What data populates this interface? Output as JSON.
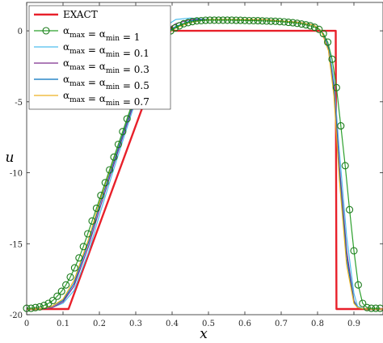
{
  "chart_data": {
    "type": "line",
    "title": "",
    "xlabel": "x",
    "ylabel": "u",
    "xlim": [
      0,
      0.98
    ],
    "ylim": [
      -20,
      2
    ],
    "xticks": [
      0,
      0.1,
      0.2,
      0.3,
      0.4,
      0.5,
      0.6,
      0.7,
      0.8,
      0.9
    ],
    "xtick_labels": [
      "0",
      "0.1",
      "0.2",
      "0.3",
      "0.4",
      "0.5",
      "0.6",
      "0.7",
      "0.8",
      "0.9"
    ],
    "yticks": [
      0,
      -5,
      -10,
      -15,
      -20
    ],
    "ytick_labels": [
      "0",
      "-5",
      "-10",
      "-15",
      "-20"
    ],
    "grid": false,
    "legend_position": "top-left",
    "series": [
      {
        "name": "EXACT",
        "legend": {
          "base": "EXACT"
        },
        "color": "#e8202a",
        "style": "line",
        "width": 2.4,
        "x": [
          0,
          0.11,
          0.115,
          0.4,
          0.403,
          0.85,
          0.852,
          0.98
        ],
        "y": [
          -19.6,
          -19.6,
          -19.6,
          0.3,
          0.0,
          0.0,
          -19.6,
          -19.6
        ]
      },
      {
        "name": "alpha_max = alpha_min = 0.1",
        "legend": {
          "base": "α",
          "sub1": "max",
          "mid": " = α",
          "sub2": "min",
          "val": " = 0.1"
        },
        "color": "#4dbeee",
        "style": "line",
        "width": 1.2,
        "x": [
          0,
          0.04,
          0.07,
          0.1,
          0.13,
          0.17,
          0.2,
          0.25,
          0.3,
          0.35,
          0.38,
          0.41,
          0.45,
          0.5,
          0.55,
          0.6,
          0.65,
          0.7,
          0.75,
          0.79,
          0.81,
          0.83,
          0.845,
          0.86,
          0.88,
          0.9,
          0.91,
          0.93,
          0.98
        ],
        "y": [
          -19.6,
          -19.6,
          -19.5,
          -19.2,
          -18.3,
          -15.6,
          -13.0,
          -8.9,
          -4.9,
          -1.2,
          0.3,
          0.8,
          0.9,
          0.8,
          0.8,
          0.8,
          0.8,
          0.7,
          0.6,
          0.4,
          0.0,
          -1.0,
          -3.5,
          -8.5,
          -14.5,
          -18.5,
          -19.4,
          -19.6,
          -19.6
        ]
      },
      {
        "name": "alpha_max = alpha_min = 0.3",
        "legend": {
          "base": "α",
          "sub1": "max",
          "mid": " = α",
          "sub2": "min",
          "val": " = 0.3"
        },
        "color": "#7e2f8e",
        "style": "line",
        "width": 1.2,
        "x": [
          0,
          0.04,
          0.07,
          0.1,
          0.13,
          0.17,
          0.2,
          0.25,
          0.3,
          0.35,
          0.38,
          0.41,
          0.45,
          0.5,
          0.55,
          0.6,
          0.65,
          0.7,
          0.75,
          0.79,
          0.81,
          0.83,
          0.845,
          0.86,
          0.88,
          0.9,
          0.91,
          0.93,
          0.98
        ],
        "y": [
          -19.6,
          -19.6,
          -19.5,
          -19.1,
          -18.0,
          -15.2,
          -12.6,
          -8.6,
          -4.7,
          -1.3,
          0.0,
          0.5,
          0.8,
          0.8,
          0.8,
          0.8,
          0.8,
          0.7,
          0.6,
          0.4,
          0.0,
          -1.2,
          -4.0,
          -9.5,
          -15.5,
          -19.0,
          -19.5,
          -19.6,
          -19.6
        ]
      },
      {
        "name": "alpha_max = alpha_min = 0.5",
        "legend": {
          "base": "α",
          "sub1": "max",
          "mid": " = α",
          "sub2": "min",
          "val": " = 0.5"
        },
        "color": "#0072bd",
        "style": "line",
        "width": 1.2,
        "x": [
          0,
          0.04,
          0.07,
          0.1,
          0.13,
          0.17,
          0.2,
          0.25,
          0.3,
          0.35,
          0.38,
          0.41,
          0.45,
          0.5,
          0.55,
          0.6,
          0.65,
          0.7,
          0.75,
          0.79,
          0.81,
          0.83,
          0.845,
          0.86,
          0.88,
          0.9,
          0.91,
          0.93,
          0.98
        ],
        "y": [
          -19.6,
          -19.6,
          -19.4,
          -19.0,
          -17.8,
          -14.9,
          -12.3,
          -8.4,
          -4.5,
          -1.4,
          -0.2,
          0.3,
          0.7,
          0.8,
          0.8,
          0.8,
          0.8,
          0.7,
          0.6,
          0.4,
          0.0,
          -1.3,
          -4.3,
          -10.0,
          -16.0,
          -19.1,
          -19.5,
          -19.6,
          -19.6
        ]
      },
      {
        "name": "alpha_max = alpha_min = 0.7",
        "legend": {
          "base": "α",
          "sub1": "max",
          "mid": " = α",
          "sub2": "min",
          "val": " = 0.7"
        },
        "color": "#edb120",
        "style": "line",
        "width": 1.2,
        "x": [
          0,
          0.04,
          0.07,
          0.1,
          0.13,
          0.17,
          0.2,
          0.25,
          0.3,
          0.35,
          0.38,
          0.41,
          0.45,
          0.5,
          0.55,
          0.6,
          0.65,
          0.7,
          0.75,
          0.79,
          0.81,
          0.83,
          0.845,
          0.86,
          0.88,
          0.9,
          0.91,
          0.93,
          0.98
        ],
        "y": [
          -19.6,
          -19.6,
          -19.4,
          -18.9,
          -17.6,
          -14.7,
          -12.1,
          -8.2,
          -4.4,
          -1.5,
          -0.3,
          0.2,
          0.6,
          0.8,
          0.8,
          0.8,
          0.8,
          0.7,
          0.6,
          0.4,
          0.0,
          -1.4,
          -4.6,
          -10.5,
          -16.5,
          -19.2,
          -19.5,
          -19.6,
          -19.6
        ]
      },
      {
        "name": "alpha_max = alpha_min = 1",
        "legend": {
          "base": "α",
          "sub1": "max",
          "mid": " = α",
          "sub2": "min",
          "val": " = 1"
        },
        "color": "#2ca02c",
        "marker_color": "#1a7a1a",
        "style": "line+marker",
        "width": 1.2,
        "x": [
          0,
          0.012,
          0.024,
          0.036,
          0.048,
          0.06,
          0.072,
          0.084,
          0.096,
          0.108,
          0.12,
          0.132,
          0.144,
          0.156,
          0.168,
          0.18,
          0.192,
          0.204,
          0.216,
          0.228,
          0.24,
          0.252,
          0.264,
          0.276,
          0.288,
          0.3,
          0.312,
          0.324,
          0.336,
          0.348,
          0.36,
          0.372,
          0.384,
          0.396,
          0.408,
          0.42,
          0.432,
          0.444,
          0.456,
          0.468,
          0.48,
          0.492,
          0.504,
          0.516,
          0.528,
          0.54,
          0.552,
          0.564,
          0.576,
          0.588,
          0.6,
          0.612,
          0.624,
          0.636,
          0.648,
          0.66,
          0.672,
          0.684,
          0.696,
          0.708,
          0.72,
          0.732,
          0.744,
          0.756,
          0.768,
          0.78,
          0.792,
          0.804,
          0.816,
          0.828,
          0.84,
          0.852,
          0.864,
          0.876,
          0.888,
          0.9,
          0.912,
          0.924,
          0.936,
          0.948,
          0.96,
          0.972
        ],
        "y": [
          -19.55,
          -19.55,
          -19.5,
          -19.45,
          -19.35,
          -19.2,
          -19.0,
          -18.7,
          -18.35,
          -17.9,
          -17.35,
          -16.7,
          -16.0,
          -15.2,
          -14.3,
          -13.4,
          -12.5,
          -11.6,
          -10.7,
          -9.8,
          -8.9,
          -8.0,
          -7.1,
          -6.2,
          -5.3,
          -4.5,
          -3.7,
          -2.9,
          -2.2,
          -1.6,
          -1.1,
          -0.6,
          -0.25,
          0.0,
          0.2,
          0.35,
          0.5,
          0.58,
          0.65,
          0.7,
          0.72,
          0.74,
          0.75,
          0.75,
          0.75,
          0.75,
          0.75,
          0.75,
          0.74,
          0.74,
          0.73,
          0.72,
          0.72,
          0.71,
          0.7,
          0.69,
          0.68,
          0.67,
          0.65,
          0.63,
          0.6,
          0.57,
          0.53,
          0.48,
          0.42,
          0.35,
          0.25,
          0.1,
          -0.2,
          -0.8,
          -2.0,
          -4.0,
          -6.7,
          -9.5,
          -12.6,
          -15.5,
          -17.9,
          -19.2,
          -19.5,
          -19.55,
          -19.55,
          -19.55
        ]
      }
    ]
  }
}
